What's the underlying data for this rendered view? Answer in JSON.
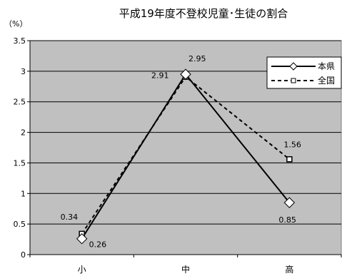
{
  "chart_data": {
    "type": "line",
    "title": "平成19年度不登校児童･生徒の割合",
    "y_unit": "（%）",
    "categories": [
      "小",
      "中",
      "高"
    ],
    "yticks": [
      "0",
      "0.5",
      "1",
      "1.5",
      "2",
      "2.5",
      "3",
      "3.5"
    ],
    "ylim": [
      0,
      3.5
    ],
    "grid": true,
    "legend_position": "top-right",
    "series": [
      {
        "name": "本県",
        "values": [
          0.26,
          2.95,
          0.85
        ],
        "labels": [
          "0.26",
          "2.95",
          "0.85"
        ],
        "style": "solid",
        "marker": "diamond",
        "color": "#000000"
      },
      {
        "name": "全国",
        "values": [
          0.34,
          2.91,
          1.56
        ],
        "labels": [
          "0.34",
          "2.91",
          "1.56"
        ],
        "style": "dashed",
        "marker": "square",
        "color": "#000000"
      }
    ]
  },
  "colors": {
    "plot_bg": "#c0c0c0",
    "grid": "#000000",
    "frame": "#808080"
  }
}
